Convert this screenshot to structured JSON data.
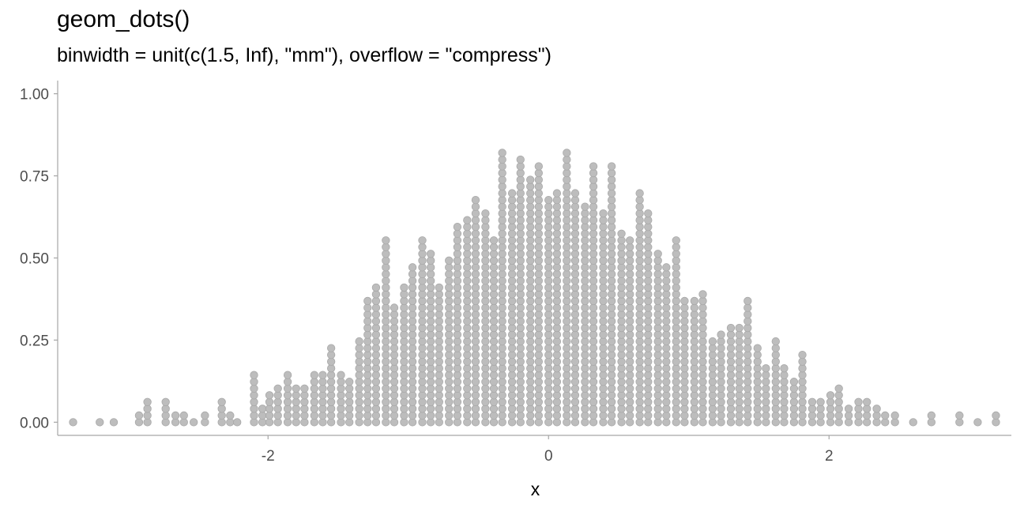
{
  "chart_data": {
    "type": "scatter",
    "title": "geom_dots()",
    "subtitle": "binwidth = unit(c(1.5, Inf), \"mm\"), overflow = \"compress\")",
    "xlabel": "x",
    "ylabel": "",
    "xlim": [
      -3.5,
      3.3
    ],
    "ylim": [
      -0.04,
      1.04
    ],
    "x_ticks": [
      "-2",
      "0",
      "2"
    ],
    "x_tick_values": [
      -2,
      0,
      2
    ],
    "y_ticks": [
      "0.00",
      "0.25",
      "0.50",
      "0.75",
      "1.00"
    ],
    "y_tick_values": [
      0,
      0.25,
      0.5,
      0.75,
      1.0
    ],
    "grid": false,
    "dot_color": "#bdbdbd",
    "dot_stroke": "#a9a9a9",
    "axis_color": "#a6a6a6",
    "dot_step": 0.0205,
    "columns": [
      {
        "x": -3.39,
        "n": 1
      },
      {
        "x": -3.2,
        "n": 1
      },
      {
        "x": -3.1,
        "n": 1
      },
      {
        "x": -2.92,
        "n": 2
      },
      {
        "x": -2.86,
        "n": 4
      },
      {
        "x": -2.73,
        "n": 4
      },
      {
        "x": -2.66,
        "n": 2
      },
      {
        "x": -2.6,
        "n": 2
      },
      {
        "x": -2.53,
        "n": 1
      },
      {
        "x": -2.45,
        "n": 2
      },
      {
        "x": -2.33,
        "n": 4
      },
      {
        "x": -2.27,
        "n": 2
      },
      {
        "x": -2.22,
        "n": 1
      },
      {
        "x": -2.1,
        "n": 8
      },
      {
        "x": -2.04,
        "n": 3
      },
      {
        "x": -1.99,
        "n": 5
      },
      {
        "x": -1.93,
        "n": 6
      },
      {
        "x": -1.86,
        "n": 8
      },
      {
        "x": -1.8,
        "n": 6
      },
      {
        "x": -1.74,
        "n": 6
      },
      {
        "x": -1.67,
        "n": 8
      },
      {
        "x": -1.61,
        "n": 8
      },
      {
        "x": -1.55,
        "n": 12
      },
      {
        "x": -1.48,
        "n": 8
      },
      {
        "x": -1.42,
        "n": 7
      },
      {
        "x": -1.35,
        "n": 13
      },
      {
        "x": -1.29,
        "n": 19
      },
      {
        "x": -1.23,
        "n": 21
      },
      {
        "x": -1.16,
        "n": 28
      },
      {
        "x": -1.1,
        "n": 18
      },
      {
        "x": -1.03,
        "n": 21
      },
      {
        "x": -0.97,
        "n": 24
      },
      {
        "x": -0.9,
        "n": 28
      },
      {
        "x": -0.84,
        "n": 26
      },
      {
        "x": -0.78,
        "n": 21
      },
      {
        "x": -0.71,
        "n": 25
      },
      {
        "x": -0.65,
        "n": 30
      },
      {
        "x": -0.58,
        "n": 31
      },
      {
        "x": -0.52,
        "n": 34
      },
      {
        "x": -0.45,
        "n": 32
      },
      {
        "x": -0.39,
        "n": 28
      },
      {
        "x": -0.33,
        "n": 41
      },
      {
        "x": -0.26,
        "n": 35
      },
      {
        "x": -0.2,
        "n": 40
      },
      {
        "x": -0.13,
        "n": 37
      },
      {
        "x": -0.07,
        "n": 39
      },
      {
        "x": 0.0,
        "n": 34
      },
      {
        "x": 0.06,
        "n": 35
      },
      {
        "x": 0.13,
        "n": 41
      },
      {
        "x": 0.19,
        "n": 35
      },
      {
        "x": 0.26,
        "n": 33
      },
      {
        "x": 0.32,
        "n": 39
      },
      {
        "x": 0.39,
        "n": 32
      },
      {
        "x": 0.45,
        "n": 39
      },
      {
        "x": 0.52,
        "n": 29
      },
      {
        "x": 0.58,
        "n": 28
      },
      {
        "x": 0.65,
        "n": 35
      },
      {
        "x": 0.71,
        "n": 32
      },
      {
        "x": 0.78,
        "n": 26
      },
      {
        "x": 0.84,
        "n": 24
      },
      {
        "x": 0.91,
        "n": 28
      },
      {
        "x": 0.97,
        "n": 19
      },
      {
        "x": 1.04,
        "n": 19
      },
      {
        "x": 1.1,
        "n": 20
      },
      {
        "x": 1.17,
        "n": 13
      },
      {
        "x": 1.23,
        "n": 14
      },
      {
        "x": 1.3,
        "n": 15
      },
      {
        "x": 1.36,
        "n": 15
      },
      {
        "x": 1.42,
        "n": 19
      },
      {
        "x": 1.49,
        "n": 12
      },
      {
        "x": 1.55,
        "n": 9
      },
      {
        "x": 1.62,
        "n": 13
      },
      {
        "x": 1.68,
        "n": 9
      },
      {
        "x": 1.75,
        "n": 7
      },
      {
        "x": 1.81,
        "n": 11
      },
      {
        "x": 1.88,
        "n": 4
      },
      {
        "x": 1.94,
        "n": 4
      },
      {
        "x": 2.01,
        "n": 5
      },
      {
        "x": 2.07,
        "n": 6
      },
      {
        "x": 2.14,
        "n": 3
      },
      {
        "x": 2.21,
        "n": 4
      },
      {
        "x": 2.27,
        "n": 4
      },
      {
        "x": 2.34,
        "n": 3
      },
      {
        "x": 2.4,
        "n": 2
      },
      {
        "x": 2.47,
        "n": 2
      },
      {
        "x": 2.6,
        "n": 1
      },
      {
        "x": 2.73,
        "n": 2
      },
      {
        "x": 2.93,
        "n": 2
      },
      {
        "x": 3.06,
        "n": 1
      },
      {
        "x": 3.19,
        "n": 2
      }
    ]
  }
}
